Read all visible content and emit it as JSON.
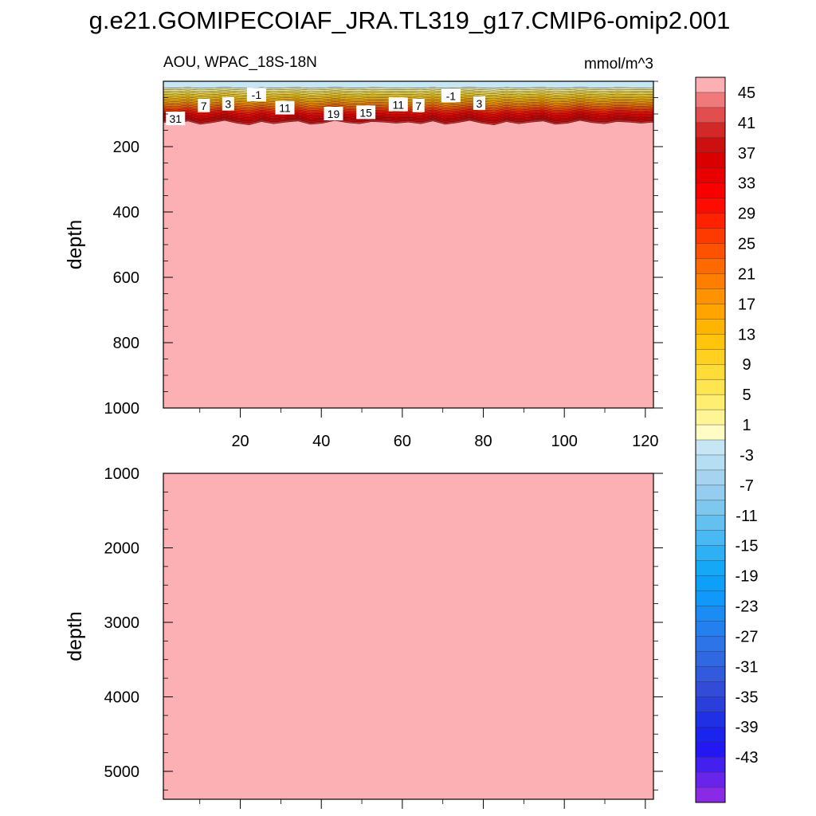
{
  "chart_data": {
    "type": "contour",
    "title": "g.e21.GOMIPECOIAF_JRA.TL319_g17.CMIP6-omip2.001",
    "subtitle_left": "AOU, WPAC_18S-18N",
    "subtitle_right": "mmol/m^3",
    "x_ticks": [
      20,
      40,
      60,
      80,
      100,
      120
    ],
    "x_range": [
      1,
      122
    ],
    "panels": [
      {
        "name": "upper",
        "ylabel": "depth",
        "y_range": [
          0,
          1000
        ],
        "y_ticks": [
          200,
          400,
          600,
          800,
          1000
        ],
        "inverted": true
      },
      {
        "name": "lower",
        "ylabel": "depth",
        "y_range": [
          1000,
          5375
        ],
        "y_ticks": [
          1000,
          2000,
          3000,
          4000,
          5000
        ],
        "inverted": true
      }
    ],
    "contour_labels": [
      {
        "text": "31",
        "x": 4,
        "depth": 115
      },
      {
        "text": "7",
        "x": 11,
        "depth": 75
      },
      {
        "text": "3",
        "x": 17,
        "depth": 70
      },
      {
        "text": "-1",
        "x": 24,
        "depth": 42
      },
      {
        "text": "11",
        "x": 31,
        "depth": 82
      },
      {
        "text": "19",
        "x": 43,
        "depth": 100
      },
      {
        "text": "15",
        "x": 51,
        "depth": 96
      },
      {
        "text": "11",
        "x": 59,
        "depth": 72
      },
      {
        "text": "7",
        "x": 64,
        "depth": 75
      },
      {
        "text": "-1",
        "x": 72,
        "depth": 45
      },
      {
        "text": "3",
        "x": 79,
        "depth": 68
      }
    ],
    "colorbar": {
      "levels": [
        -47,
        -45,
        -43,
        -41,
        -39,
        -37,
        -35,
        -33,
        -31,
        -29,
        -27,
        -25,
        -23,
        -21,
        -19,
        -17,
        -15,
        -13,
        -11,
        -9,
        -7,
        -5,
        -3,
        -1,
        1,
        3,
        5,
        7,
        9,
        11,
        13,
        15,
        17,
        19,
        21,
        23,
        25,
        27,
        29,
        31,
        33,
        35,
        37,
        39,
        41,
        43,
        45,
        47
      ],
      "tick_labels": [
        "45",
        "41",
        "37",
        "33",
        "29",
        "25",
        "21",
        "17",
        "13",
        "9",
        "5",
        "1",
        "-3",
        "-7",
        "-11",
        "-15",
        "-19",
        "-23",
        "-27",
        "-31",
        "-35",
        "-39",
        "-43"
      ],
      "tick_values": [
        45,
        41,
        37,
        33,
        29,
        25,
        21,
        17,
        13,
        9,
        5,
        1,
        -3,
        -7,
        -11,
        -15,
        -19,
        -23,
        -27,
        -31,
        -35,
        -39,
        -43
      ],
      "colors_top_to_bottom": [
        "#fdb0b4",
        "#f07a7a",
        "#e24e4e",
        "#d42828",
        "#cc1010",
        "#da0000",
        "#e80000",
        "#f80000",
        "#ff0c00",
        "#ff2200",
        "#ff3a00",
        "#ff5200",
        "#ff6a00",
        "#ff7e00",
        "#ff9200",
        "#ffa400",
        "#ffb400",
        "#ffc40c",
        "#ffd020",
        "#ffdc38",
        "#ffe650",
        "#ffee70",
        "#fff594",
        "#fffcc4",
        "#c6e6f4",
        "#b6def2",
        "#a6d4f0",
        "#94cdf0",
        "#7ec8f0",
        "#64c0f0",
        "#4ab8f2",
        "#2eb0f4",
        "#14a8f6",
        "#0ca0f8",
        "#1098fa",
        "#1a8cf4",
        "#2480ee",
        "#2c74e8",
        "#3068e2",
        "#325adc",
        "#324cd8",
        "#2a3edc",
        "#2030e4",
        "#1a24ec",
        "#2418f2",
        "#4420ee",
        "#6824ea",
        "#8a2ae6"
      ]
    }
  }
}
